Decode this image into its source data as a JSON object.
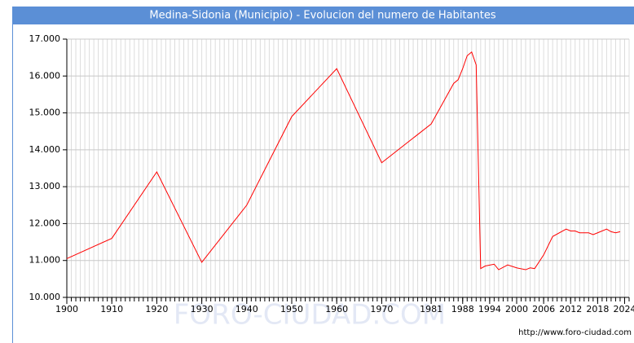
{
  "chart_data": {
    "type": "line",
    "title": "Medina-Sidonia (Municipio) - Evolucion del numero de Habitantes",
    "watermark": "FORO-CIUDAD.COM",
    "source": "http://www.foro-ciudad.com",
    "x": [
      1900,
      1910,
      1920,
      1930,
      1940,
      1950,
      1960,
      1970,
      1981,
      1986,
      1987,
      1988,
      1989,
      1990,
      1991,
      1992,
      1993,
      1995,
      1996,
      1998,
      2000,
      2002,
      2003,
      2004,
      2006,
      2008,
      2011,
      2012,
      2013,
      2014,
      2016,
      2017,
      2018,
      2020,
      2021,
      2022,
      2023
    ],
    "series": [
      {
        "name": "Habitantes",
        "color": "#ff0000",
        "values": [
          11050,
          11600,
          13400,
          10950,
          12500,
          14900,
          16200,
          13650,
          14700,
          15800,
          15900,
          16200,
          16550,
          16650,
          16300,
          10780,
          10850,
          10900,
          10750,
          10880,
          10800,
          10750,
          10800,
          10780,
          11150,
          11650,
          11850,
          11800,
          11800,
          11750,
          11750,
          11700,
          11750,
          11850,
          11780,
          11750,
          11780
        ]
      }
    ],
    "xlim": [
      1900,
      2025
    ],
    "xticks": [
      1900,
      1910,
      1920,
      1930,
      1940,
      1950,
      1960,
      1970,
      1981,
      1988,
      1994,
      2000,
      2006,
      2012,
      2018,
      2024
    ],
    "ylim": [
      10000,
      17000
    ],
    "yticks": [
      {
        "value": 10000,
        "label": "10.000"
      },
      {
        "value": 11000,
        "label": "11.000"
      },
      {
        "value": 12000,
        "label": "12.000"
      },
      {
        "value": 13000,
        "label": "13.000"
      },
      {
        "value": 14000,
        "label": "14.000"
      },
      {
        "value": 15000,
        "label": "15.000"
      },
      {
        "value": 16000,
        "label": "16.000"
      },
      {
        "value": 17000,
        "label": "17.000"
      }
    ],
    "grid": true
  }
}
